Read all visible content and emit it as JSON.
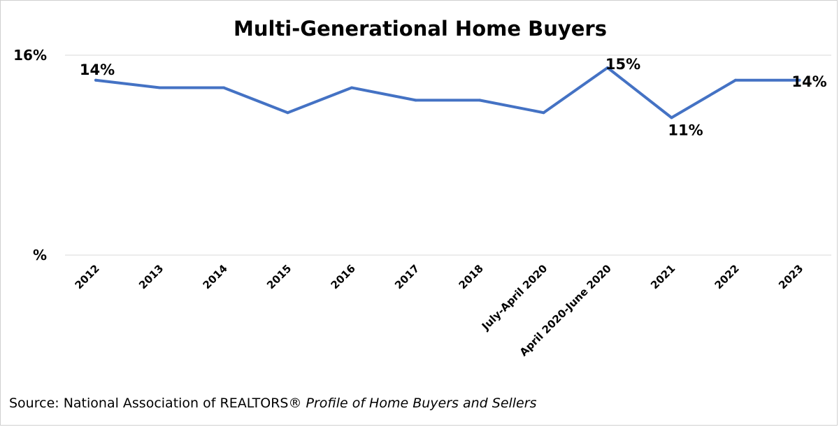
{
  "chart_data": {
    "type": "line",
    "title": "Multi-Generational Home Buyers",
    "xlabel": "",
    "ylabel": "",
    "categories": [
      "2012",
      "2013",
      "2014",
      "2015",
      "2016",
      "2017",
      "2018",
      "July-April 2020",
      "April 2020-June 2020",
      "2021",
      "2022",
      "2023"
    ],
    "series": [
      {
        "values": [
          14,
          13.4,
          13.4,
          11.4,
          13.4,
          12.4,
          12.4,
          11.4,
          15,
          11,
          14,
          14
        ]
      }
    ],
    "ylim": [
      0,
      16
    ],
    "y_ticks": [
      {
        "value": 16,
        "label": "16%"
      },
      {
        "value": 0,
        "label": "%"
      }
    ],
    "data_labels": [
      {
        "index": 0,
        "text": "14%"
      },
      {
        "index": 8,
        "text": "15%"
      },
      {
        "index": 9,
        "text": "11%"
      },
      {
        "index": 11,
        "text": "14%"
      }
    ],
    "line_color": "#4472C4",
    "grid": true,
    "legend": "none"
  },
  "source": {
    "prefix": "Source: National Association of REALTORS® ",
    "italic": "Profile of Home Buyers and Sellers"
  }
}
